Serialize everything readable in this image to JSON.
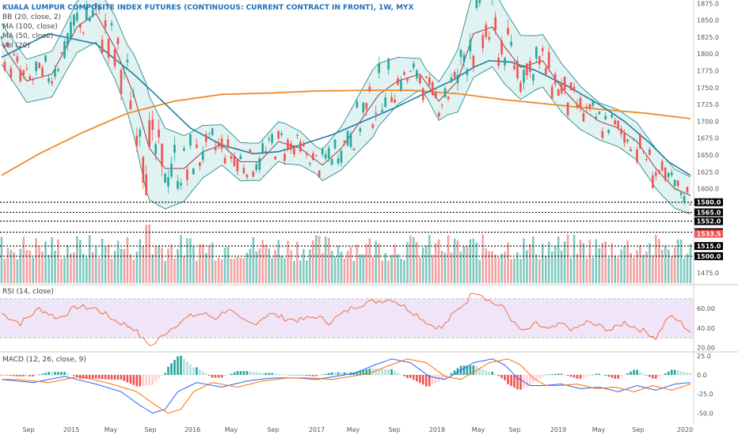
{
  "legend": {
    "title": "KUALA LUMPUR COMPOSITE INDEX FUTURES (CONTINUOUS: CURRENT CONTRACT IN FRONT), 1W, MYX",
    "bb": "BB (20, close, 2)",
    "ma100": "MA (100, close)",
    "ma50": "MA (50, close)",
    "vol": "Vol (20)",
    "rsi": "RSI (14, close)",
    "macd": "MACD (12, 26, close, 9)"
  },
  "chart_data": {
    "type": "candlestick",
    "x_tick_labels": [
      "Sep",
      "2015",
      "May",
      "Sep",
      "2016",
      "May",
      "Sep",
      "2017",
      "May",
      "Sep",
      "2018",
      "May",
      "Sep",
      "2019",
      "May",
      "Sep",
      "2020"
    ],
    "price_axis": {
      "range": [
        1460,
        1880
      ],
      "ticks": [
        1475,
        1500,
        1525,
        1550,
        1575,
        1600,
        1625,
        1650,
        1675,
        1700,
        1725,
        1750,
        1775,
        1800,
        1825,
        1850,
        1875
      ]
    },
    "rsi_axis": {
      "range": [
        18,
        82
      ],
      "ticks": [
        20.0,
        40.0,
        60.0
      ],
      "band": [
        30,
        70
      ]
    },
    "macd_axis": {
      "range": [
        -58,
        28
      ],
      "ticks": [
        25.0,
        0.0,
        -25.0,
        -50.0
      ]
    },
    "price_levels": [
      {
        "label": "1580.0",
        "value": 1580.0,
        "color": "#000000"
      },
      {
        "label": "1565.0",
        "value": 1565.0,
        "color": "#000000"
      },
      {
        "label": "1552.0",
        "value": 1552.0,
        "color": "#000000"
      },
      {
        "label": "1535.5",
        "value": 1535.5,
        "color": "#000000"
      },
      {
        "label": "1533.5",
        "value": 1533.5,
        "color": "#ef5350"
      },
      {
        "label": "1515.0",
        "value": 1515.0,
        "color": "#000000"
      },
      {
        "label": "1500.0",
        "value": 1500.0,
        "color": "#000000"
      }
    ],
    "anchors": {
      "ma100": [
        [
          0,
          1620
        ],
        [
          12,
          1652
        ],
        [
          26,
          1684
        ],
        [
          40,
          1712
        ],
        [
          55,
          1730
        ],
        [
          70,
          1740
        ],
        [
          85,
          1742
        ],
        [
          100,
          1745
        ],
        [
          115,
          1746
        ],
        [
          130,
          1746
        ],
        [
          145,
          1741
        ],
        [
          160,
          1732
        ],
        [
          175,
          1725
        ],
        [
          190,
          1718
        ],
        [
          205,
          1712
        ],
        [
          219,
          1704
        ]
      ],
      "ma50": [
        [
          0,
          1795
        ],
        [
          15,
          1830
        ],
        [
          30,
          1815
        ],
        [
          42,
          1770
        ],
        [
          50,
          1735
        ],
        [
          60,
          1690
        ],
        [
          70,
          1665
        ],
        [
          80,
          1652
        ],
        [
          88,
          1655
        ],
        [
          95,
          1665
        ],
        [
          105,
          1680
        ],
        [
          115,
          1700
        ],
        [
          125,
          1720
        ],
        [
          133,
          1738
        ],
        [
          143,
          1760
        ],
        [
          150,
          1780
        ],
        [
          155,
          1790
        ],
        [
          162,
          1788
        ],
        [
          170,
          1775
        ],
        [
          180,
          1752
        ],
        [
          190,
          1725
        ],
        [
          198,
          1700
        ],
        [
          206,
          1668
        ],
        [
          212,
          1640
        ],
        [
          219,
          1620
        ]
      ],
      "mid": [
        [
          0,
          1815
        ],
        [
          8,
          1760
        ],
        [
          16,
          1770
        ],
        [
          24,
          1840
        ],
        [
          30,
          1860
        ],
        [
          36,
          1810
        ],
        [
          42,
          1740
        ],
        [
          47,
          1660
        ],
        [
          52,
          1630
        ],
        [
          58,
          1630
        ],
        [
          64,
          1655
        ],
        [
          70,
          1665
        ],
        [
          76,
          1640
        ],
        [
          82,
          1640
        ],
        [
          88,
          1670
        ],
        [
          95,
          1660
        ],
        [
          102,
          1635
        ],
        [
          108,
          1660
        ],
        [
          114,
          1700
        ],
        [
          120,
          1740
        ],
        [
          126,
          1760
        ],
        [
          133,
          1770
        ],
        [
          139,
          1730
        ],
        [
          145,
          1760
        ],
        [
          150,
          1830
        ],
        [
          156,
          1840
        ],
        [
          160,
          1810
        ],
        [
          165,
          1780
        ],
        [
          172,
          1790
        ],
        [
          178,
          1750
        ],
        [
          184,
          1720
        ],
        [
          190,
          1700
        ],
        [
          196,
          1690
        ],
        [
          202,
          1670
        ],
        [
          208,
          1630
        ],
        [
          214,
          1600
        ],
        [
          219,
          1590
        ]
      ],
      "width": [
        [
          0,
          60
        ],
        [
          20,
          70
        ],
        [
          40,
          100
        ],
        [
          46,
          160
        ],
        [
          52,
          120
        ],
        [
          60,
          90
        ],
        [
          70,
          60
        ],
        [
          80,
          55
        ],
        [
          90,
          60
        ],
        [
          100,
          40
        ],
        [
          110,
          70
        ],
        [
          118,
          100
        ],
        [
          126,
          70
        ],
        [
          135,
          40
        ],
        [
          142,
          70
        ],
        [
          150,
          130
        ],
        [
          160,
          110
        ],
        [
          170,
          80
        ],
        [
          180,
          70
        ],
        [
          190,
          55
        ],
        [
          200,
          55
        ],
        [
          210,
          60
        ],
        [
          219,
          55
        ]
      ],
      "rsi": [
        [
          0,
          55
        ],
        [
          6,
          45
        ],
        [
          12,
          60
        ],
        [
          18,
          50
        ],
        [
          24,
          62
        ],
        [
          30,
          60
        ],
        [
          36,
          48
        ],
        [
          42,
          40
        ],
        [
          45,
          28
        ],
        [
          48,
          22
        ],
        [
          52,
          35
        ],
        [
          56,
          45
        ],
        [
          60,
          52
        ],
        [
          64,
          55
        ],
        [
          68,
          50
        ],
        [
          72,
          60
        ],
        [
          76,
          48
        ],
        [
          80,
          44
        ],
        [
          85,
          55
        ],
        [
          90,
          50
        ],
        [
          95,
          48
        ],
        [
          100,
          52
        ],
        [
          104,
          46
        ],
        [
          108,
          54
        ],
        [
          112,
          62
        ],
        [
          116,
          66
        ],
        [
          120,
          68
        ],
        [
          124,
          70
        ],
        [
          128,
          62
        ],
        [
          132,
          54
        ],
        [
          136,
          44
        ],
        [
          140,
          40
        ],
        [
          143,
          52
        ],
        [
          146,
          62
        ],
        [
          148,
          68
        ],
        [
          150,
          78
        ],
        [
          152,
          76
        ],
        [
          156,
          66
        ],
        [
          160,
          60
        ],
        [
          163,
          44
        ],
        [
          166,
          36
        ],
        [
          170,
          44
        ],
        [
          174,
          38
        ],
        [
          178,
          44
        ],
        [
          182,
          38
        ],
        [
          186,
          46
        ],
        [
          190,
          42
        ],
        [
          194,
          38
        ],
        [
          198,
          46
        ],
        [
          202,
          40
        ],
        [
          206,
          34
        ],
        [
          208,
          30
        ],
        [
          212,
          52
        ],
        [
          215,
          48
        ],
        [
          219,
          36
        ]
      ],
      "macd": [
        [
          0,
          -6
        ],
        [
          10,
          -10
        ],
        [
          20,
          -2
        ],
        [
          30,
          -12
        ],
        [
          38,
          -22
        ],
        [
          44,
          -40
        ],
        [
          48,
          -50
        ],
        [
          52,
          -45
        ],
        [
          56,
          -22
        ],
        [
          62,
          -10
        ],
        [
          70,
          -16
        ],
        [
          78,
          -8
        ],
        [
          86,
          -4
        ],
        [
          94,
          -4
        ],
        [
          100,
          -6
        ],
        [
          106,
          -2
        ],
        [
          112,
          2
        ],
        [
          118,
          12
        ],
        [
          124,
          21
        ],
        [
          130,
          16
        ],
        [
          136,
          -2
        ],
        [
          141,
          -6
        ],
        [
          146,
          6
        ],
        [
          150,
          16
        ],
        [
          156,
          21
        ],
        [
          160,
          13
        ],
        [
          164,
          -4
        ],
        [
          168,
          -14
        ],
        [
          172,
          -14
        ],
        [
          178,
          -12
        ],
        [
          184,
          -18
        ],
        [
          190,
          -16
        ],
        [
          196,
          -22
        ],
        [
          202,
          -14
        ],
        [
          208,
          -20
        ],
        [
          214,
          -12
        ],
        [
          219,
          -10
        ]
      ]
    },
    "grid": false
  }
}
